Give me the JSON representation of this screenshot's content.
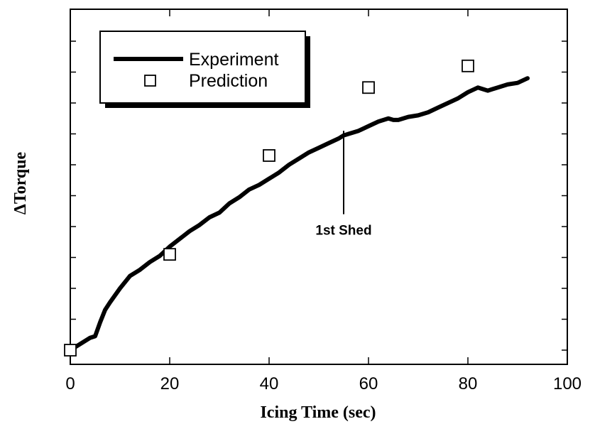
{
  "chart_data": {
    "type": "line",
    "title": "",
    "xlabel": "Icing Time (sec)",
    "ylabel": "ΔTorque",
    "xlim": [
      0,
      100
    ],
    "ylim": [
      0,
      100
    ],
    "x_ticks": [
      0,
      20,
      40,
      60,
      80,
      100
    ],
    "y_tick_labels_shown": false,
    "grid": false,
    "legend_position": "top-left",
    "series": [
      {
        "name": "Experiment",
        "style": "thick-line",
        "color": "#000000",
        "x": [
          0,
          2,
          4,
          5,
          6,
          7,
          8,
          10,
          12,
          14,
          16,
          18,
          20,
          22,
          24,
          26,
          28,
          30,
          32,
          34,
          36,
          38,
          40,
          42,
          44,
          46,
          48,
          50,
          52,
          54,
          55,
          56,
          58,
          60,
          62,
          64,
          65,
          66,
          68,
          70,
          72,
          74,
          76,
          78,
          80,
          82,
          84,
          85,
          86,
          88,
          90,
          92
        ],
        "y": [
          0,
          2,
          4,
          4.5,
          9,
          13,
          15.5,
          20,
          24,
          26,
          28.5,
          30.5,
          33.5,
          36,
          38.5,
          40.5,
          43,
          44.5,
          47.5,
          49.5,
          52,
          53.5,
          55.5,
          57.5,
          60,
          62,
          64,
          65.5,
          67,
          68.5,
          69.5,
          70,
          71,
          72.5,
          74,
          75,
          74.5,
          74.5,
          75.5,
          76,
          77,
          78.5,
          80,
          81.5,
          83.5,
          85,
          84,
          84.5,
          85,
          86,
          86.5,
          88
        ]
      },
      {
        "name": "Prediction",
        "style": "open-square",
        "color": "#000000",
        "x": [
          0,
          20,
          40,
          60,
          80
        ],
        "y": [
          0,
          31,
          63,
          85,
          92
        ]
      }
    ],
    "annotations": [
      {
        "text": "1st Shed",
        "x": 55,
        "y_from": 44,
        "y_to": 71
      }
    ]
  }
}
